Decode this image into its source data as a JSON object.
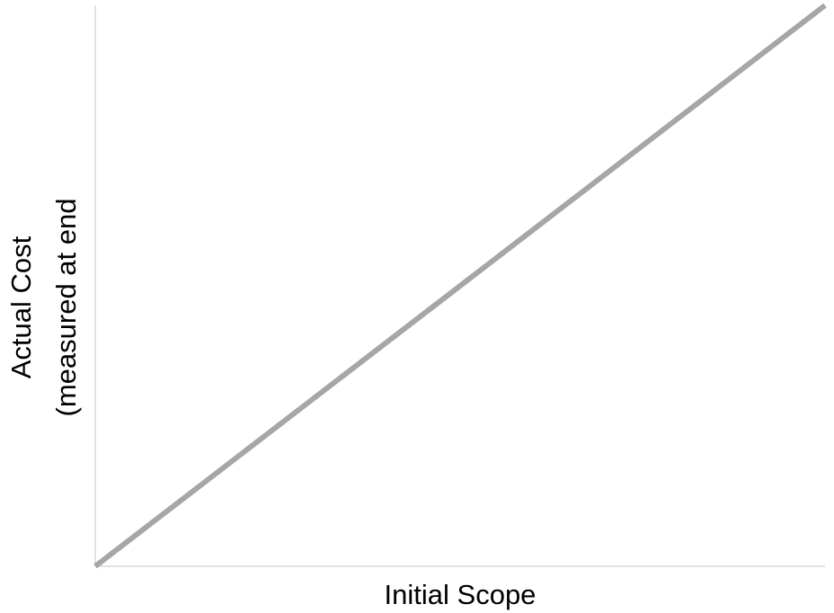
{
  "chart_data": {
    "type": "line",
    "title": "",
    "xlabel": "Initial Scope",
    "ylabel_lines": [
      "Actual Cost",
      "(measured at end"
    ],
    "x": [
      0,
      1
    ],
    "series": [
      {
        "values": [
          0,
          1
        ]
      }
    ],
    "xlim": [
      0,
      1
    ],
    "ylim": [
      0,
      1
    ],
    "grid": false,
    "legend": "none",
    "tick_labels": false,
    "colors": {
      "series": "#a6a6a6",
      "axis": "#d0d0d0",
      "text": "#000000"
    }
  }
}
